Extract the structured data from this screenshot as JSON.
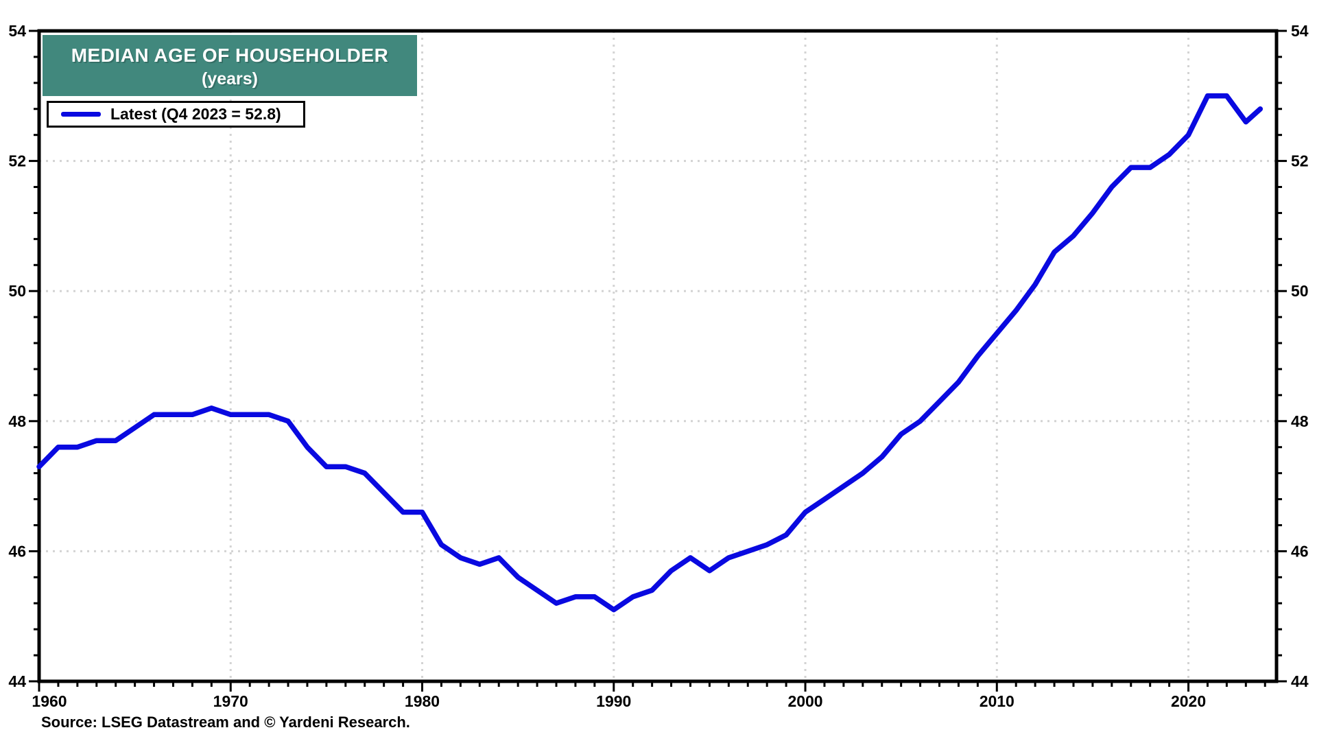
{
  "title": {
    "line1": "MEDIAN AGE OF HOUSEHOLDER",
    "line2": "(years)"
  },
  "legend": {
    "label": "Latest (Q4 2023 = 52.8)"
  },
  "footer": {
    "source": "Source: LSEG Datastream and © Yardeni Research."
  },
  "colors": {
    "line": "#0909e0",
    "title_bg": "#41887d",
    "title_text": "#ffffff",
    "grid": "#d3d3d3",
    "axis": "#000000",
    "background": "#ffffff"
  },
  "chart_data": {
    "type": "line",
    "title": "MEDIAN AGE OF HOUSEHOLDER (years)",
    "series_name": "Latest (Q4 2023 = 52.8)",
    "latest_period": "Q4 2023",
    "latest_value": 52.8,
    "x": [
      1960,
      1961,
      1962,
      1963,
      1964,
      1965,
      1966,
      1967,
      1968,
      1969,
      1970,
      1971,
      1972,
      1973,
      1974,
      1975,
      1976,
      1977,
      1978,
      1979,
      1980,
      1981,
      1982,
      1983,
      1984,
      1985,
      1986,
      1987,
      1988,
      1989,
      1990,
      1991,
      1992,
      1993,
      1994,
      1995,
      1996,
      1997,
      1998,
      1999,
      2000,
      2001,
      2002,
      2003,
      2004,
      2005,
      2006,
      2007,
      2008,
      2009,
      2010,
      2011,
      2012,
      2013,
      2014,
      2015,
      2016,
      2017,
      2018,
      2019,
      2020,
      2021,
      2022,
      2023,
      2023.75
    ],
    "values": [
      47.3,
      47.6,
      47.6,
      47.7,
      47.7,
      47.9,
      48.1,
      48.1,
      48.1,
      48.2,
      48.1,
      48.1,
      48.1,
      48.0,
      47.6,
      47.3,
      47.3,
      47.2,
      46.9,
      46.6,
      46.6,
      46.1,
      45.9,
      45.8,
      45.9,
      45.6,
      45.4,
      45.2,
      45.3,
      45.3,
      45.1,
      45.3,
      45.4,
      45.7,
      45.9,
      45.7,
      45.9,
      46.0,
      46.1,
      46.25,
      46.6,
      46.8,
      47.0,
      47.2,
      47.45,
      47.8,
      48.0,
      48.3,
      48.6,
      49.0,
      49.35,
      49.7,
      50.1,
      50.6,
      50.85,
      51.2,
      51.6,
      51.9,
      51.9,
      52.1,
      52.4,
      53.0,
      53.0,
      52.6,
      52.8
    ],
    "xlim": [
      1960,
      2024.6
    ],
    "ylim": [
      44,
      54
    ],
    "y_ticks_major": [
      44,
      46,
      48,
      50,
      52,
      54
    ],
    "x_ticks_major": [
      1960,
      1970,
      1980,
      1990,
      2000,
      2010,
      2020
    ],
    "y_minor_step": 0.4,
    "x_minor_step": 1,
    "gridline_values_y": [
      46,
      48,
      50,
      52
    ],
    "gridline_values_x": [
      1970,
      1980,
      1990,
      2000,
      2010,
      2020
    ],
    "grid": "dotted",
    "legend_position": "top-left",
    "ylabel": "",
    "xlabel": ""
  }
}
